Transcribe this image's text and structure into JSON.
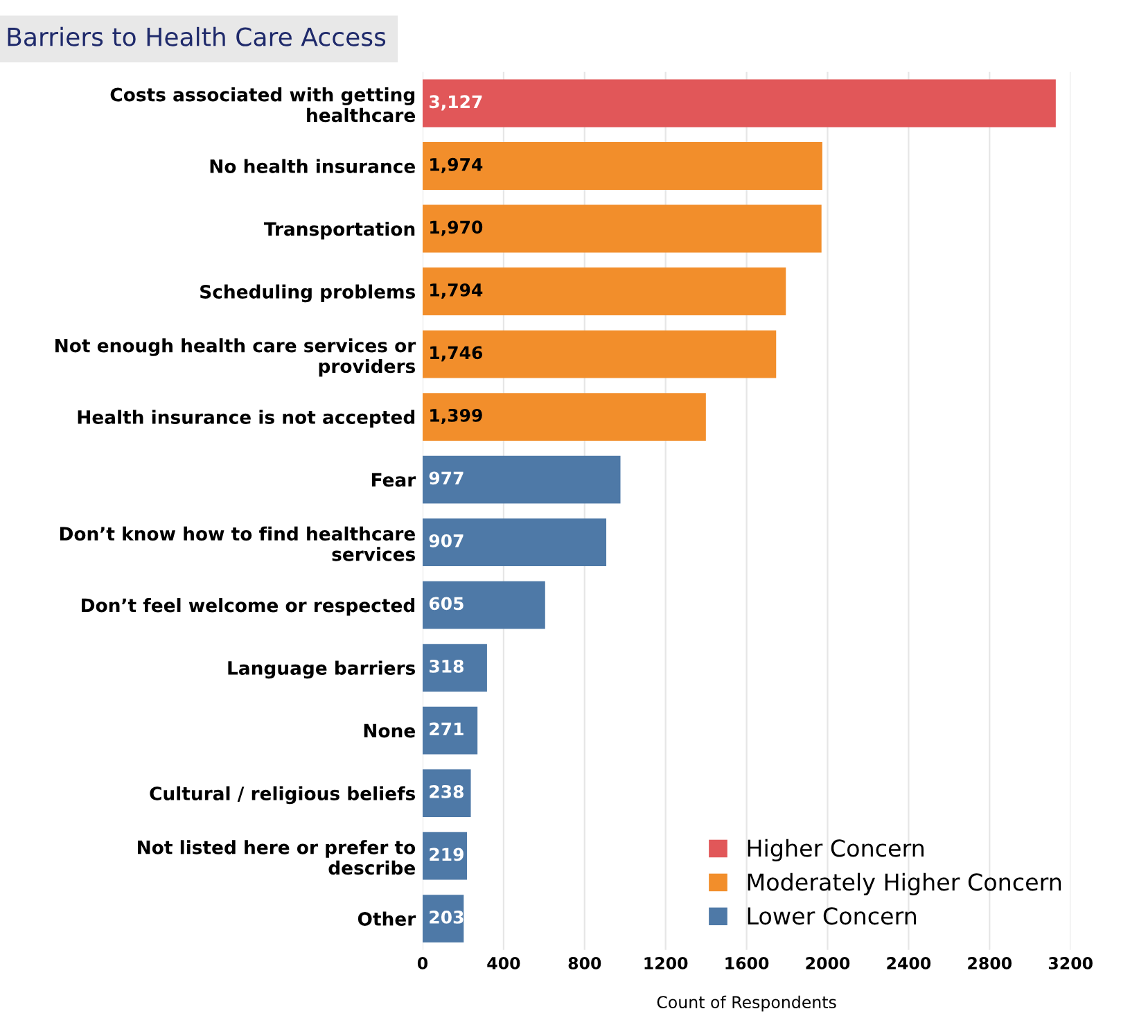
{
  "chart_data": {
    "type": "bar",
    "orientation": "horizontal",
    "title": "Barriers to Health Care Access",
    "xlabel": "Count of Respondents",
    "categories": [
      "Costs associated with getting\nhealthcare",
      "No health insurance",
      "Transportation",
      "Scheduling problems",
      "Not enough health care services or\nproviders",
      "Health insurance is not accepted",
      "Fear",
      "Don’t know how to find healthcare\nservices",
      "Don’t feel welcome or respected",
      "Language barriers",
      "None",
      "Cultural / religious beliefs",
      "Not listed here or prefer to\ndescribe",
      "Other"
    ],
    "series": [
      {
        "name": "Higher Concern",
        "color": "#e15759",
        "values": [
          3127,
          null,
          null,
          null,
          null,
          null,
          null,
          null,
          null,
          null,
          null,
          null,
          null,
          null
        ],
        "value_labels": [
          "3,127",
          null,
          null,
          null,
          null,
          null,
          null,
          null,
          null,
          null,
          null,
          null,
          null,
          null
        ]
      },
      {
        "name": "Moderately Higher Concern",
        "color": "#f28e2b",
        "values": [
          null,
          1974,
          1970,
          1794,
          1746,
          1399,
          null,
          null,
          null,
          null,
          null,
          null,
          null,
          null
        ],
        "value_labels": [
          null,
          "1,974",
          "1,970",
          "1,794",
          "1,746",
          "1,399",
          null,
          null,
          null,
          null,
          null,
          null,
          null,
          null
        ]
      },
      {
        "name": "Lower Concern",
        "color": "#4e79a7",
        "values": [
          null,
          null,
          null,
          null,
          null,
          null,
          977,
          907,
          605,
          318,
          271,
          238,
          219,
          203
        ],
        "value_labels": [
          null,
          null,
          null,
          null,
          null,
          null,
          "977",
          "907",
          "605",
          "318",
          "271",
          "238",
          "219",
          "203"
        ]
      }
    ],
    "xlim": [
      0,
      3200
    ],
    "xticks": [
      0,
      400,
      800,
      1200,
      1600,
      2000,
      2400,
      2800,
      3200
    ],
    "grid": "x",
    "legend": "bottom right"
  }
}
